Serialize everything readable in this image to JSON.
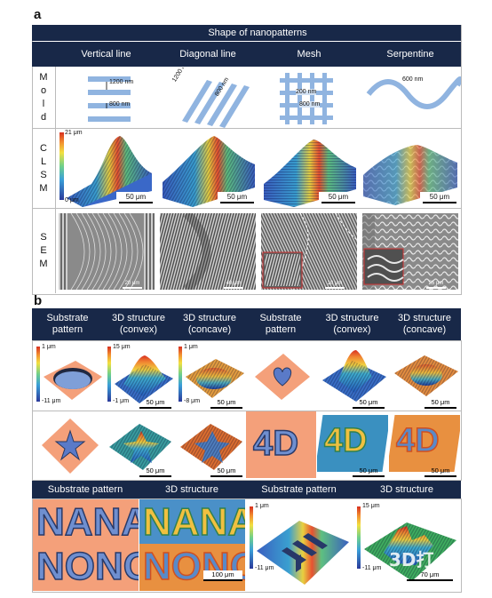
{
  "panel_a": {
    "letter": "a",
    "title": "Shape of nanopatterns",
    "columns": [
      "Vertical line",
      "Diagonal line",
      "Mesh",
      "Serpentine"
    ],
    "rows": [
      {
        "letters": [
          "M",
          "o",
          "l",
          "d"
        ]
      },
      {
        "letters": [
          "C",
          "L",
          "S",
          "M"
        ]
      },
      {
        "letters": [
          "S",
          "E",
          "M"
        ]
      }
    ],
    "mold_labels": {
      "vertical_top": "1200 nm",
      "vertical_bottom": "800 nm",
      "diagonal_1": "1200 nm",
      "diagonal_2": "800 nm",
      "mesh_1": "200 nm",
      "mesh_2": "800 nm",
      "serpentine": "600 nm"
    },
    "clsm_colorbar": {
      "max": "21 μm",
      "min": "0 μm"
    },
    "clsm_scalebars": [
      "50 μm",
      "50 μm",
      "50 μm",
      "50 μm"
    ],
    "sem_scalebars": [
      "20 μm",
      "40 μm",
      "10 μm",
      "25 μm"
    ]
  },
  "panel_b": {
    "letter": "b",
    "headers_row1": [
      "Substrate\npattern",
      "3D structure\n(convex)",
      "3D structure\n(concave)",
      "Substrate\npattern",
      "3D structure\n(convex)",
      "3D structure\n(concave)"
    ],
    "row1_colorbars": [
      {
        "max": "1 μm",
        "min": "-11 μm"
      },
      {
        "max": "15 μm",
        "min": "-1 μm"
      },
      {
        "max": "1 μm",
        "min": "-8 μm"
      }
    ],
    "row1_scalebars": [
      "50 μm",
      "50 μm",
      "50 μm",
      "50 μm"
    ],
    "row2_scalebars": [
      "50 μm",
      "50 μm",
      "50 μm",
      "50 μm"
    ],
    "row2_text": [
      "4D",
      "4D",
      "4D"
    ],
    "headers_row3": [
      "Substrate pattern",
      "3D structure",
      "Substrate pattern",
      "3D structure"
    ],
    "nana_letters": [
      "N",
      "A",
      "N",
      "A"
    ],
    "nono_letters": [
      "N",
      "O",
      "N",
      "O"
    ],
    "row3_colorbars": [
      {
        "max": "1 μm",
        "min": "-11 μm"
      },
      {
        "max": "15 μm",
        "min": "-11 μm"
      }
    ],
    "row3_scalebars": [
      "100 μm",
      "70 μm"
    ],
    "watermark": "3D打"
  },
  "colors": {
    "navy": "#182848",
    "salmon": "#f4a07a",
    "pattern_blue": "#7f9fd8",
    "mold_blue": "#90b4e0"
  }
}
